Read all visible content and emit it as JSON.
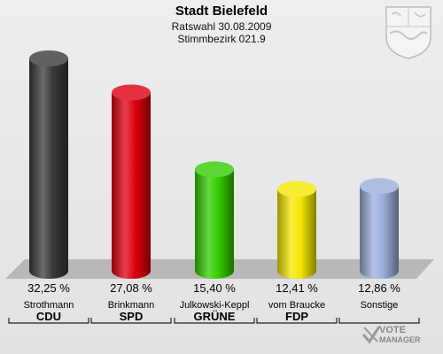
{
  "header": {
    "title": "Stadt Bielefeld",
    "subtitle1": "Ratswahl 30.08.2009",
    "subtitle2": "Stimmbezirk 021.9"
  },
  "chart_data": {
    "type": "bar",
    "title": "Stadt Bielefeld",
    "categories": [
      "Strothmann",
      "Brinkmann",
      "Julkowski-Keppl",
      "vom Braucke",
      "Sonstige"
    ],
    "parties": [
      "CDU",
      "SPD",
      "GRÜNE",
      "FDP",
      ""
    ],
    "values": [
      32.25,
      27.08,
      15.4,
      12.41,
      12.86
    ],
    "value_labels": [
      "32,25 %",
      "27,08 %",
      "15,40 %",
      "12,41 %",
      "12,86 %"
    ],
    "colors": [
      "#3a3a3a",
      "#dd0010",
      "#33cc00",
      "#f5e600",
      "#9aaedc"
    ],
    "ylim": [
      0,
      32.25
    ],
    "grid": false,
    "legend": "none"
  },
  "logo": {
    "brand_line1": "VOTE",
    "brand_line2": "MANAGER",
    "crest_icon": "nrw-coat-of-arms-icon",
    "brand_icon": "vote-check-icon"
  }
}
